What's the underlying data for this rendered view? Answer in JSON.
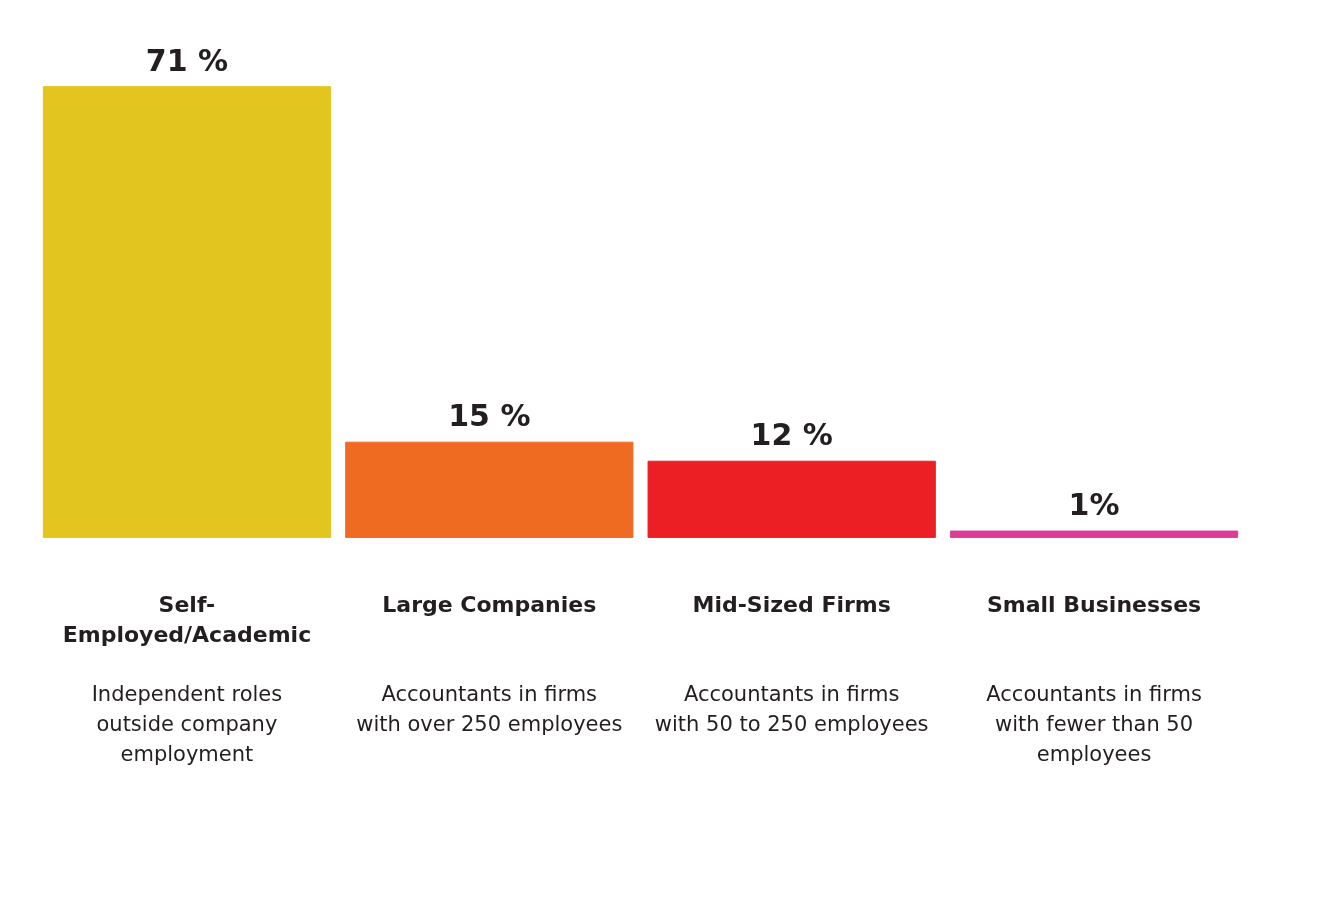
{
  "chart_data": {
    "type": "bar",
    "categories": [
      "Self-Employed/Academic",
      "Large Companies",
      "Mid-Sized Firms",
      "Small Businesses"
    ],
    "values": [
      71,
      15,
      12,
      1
    ],
    "colors": [
      "#e3c51f",
      "#f06b22",
      "#ec1f25",
      "#de3c96"
    ],
    "value_labels": [
      "71 %",
      "15 %",
      "12 %",
      "1%"
    ],
    "annotations": [
      "Independent roles outside company employment",
      "Accountants in firms with over 250 employees",
      "Accountants in firms with 50 to 250 employees",
      "Accountants in firms with fewer than 50 employees"
    ],
    "grid": false
  }
}
